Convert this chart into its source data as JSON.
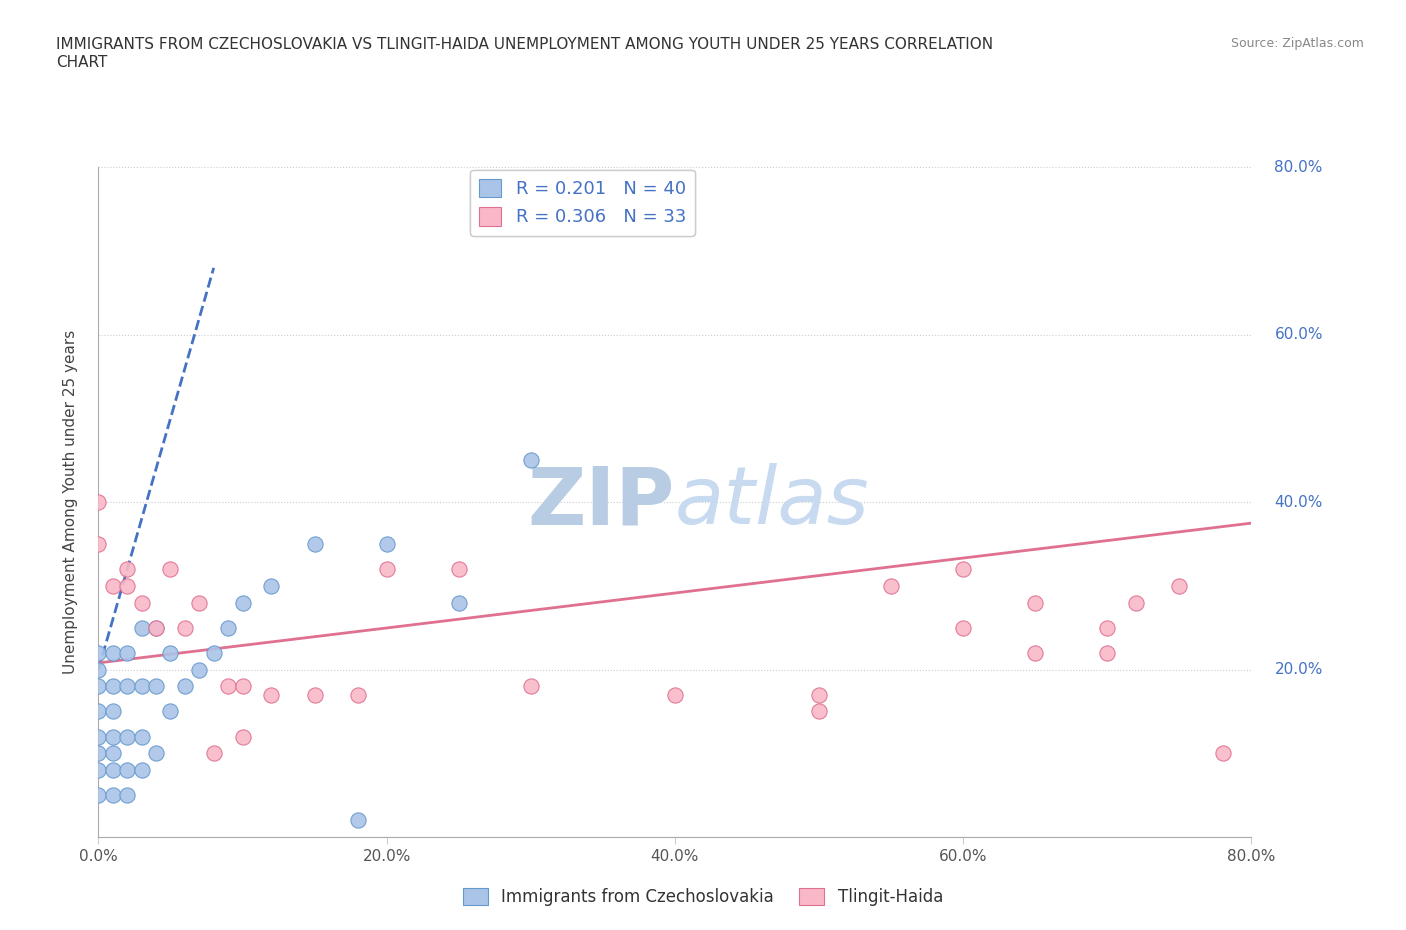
{
  "title": "IMMIGRANTS FROM CZECHOSLOVAKIA VS TLINGIT-HAIDA UNEMPLOYMENT AMONG YOUTH UNDER 25 YEARS CORRELATION\nCHART",
  "source_text": "Source: ZipAtlas.com",
  "watermark": "ZIPatlas",
  "ylabel": "Unemployment Among Youth under 25 years",
  "xlim": [
    0.0,
    0.8
  ],
  "ylim": [
    0.0,
    0.8
  ],
  "xticks": [
    0.0,
    0.2,
    0.4,
    0.6,
    0.8
  ],
  "yticks": [
    0.0,
    0.2,
    0.4,
    0.6,
    0.8
  ],
  "xticklabels": [
    "0.0%",
    "20.0%",
    "40.0%",
    "60.0%",
    "80.0%"
  ],
  "yticklabels_right": [
    "",
    "20.0%",
    "40.0%",
    "60.0%",
    "80.0%"
  ],
  "series": [
    {
      "name": "Immigrants from Czechoslovakia",
      "color": "#aac4e8",
      "edge_color": "#6699cc",
      "x": [
        0.0,
        0.0,
        0.0,
        0.0,
        0.0,
        0.0,
        0.0,
        0.0,
        0.01,
        0.01,
        0.01,
        0.01,
        0.01,
        0.01,
        0.01,
        0.02,
        0.02,
        0.02,
        0.02,
        0.02,
        0.03,
        0.03,
        0.03,
        0.03,
        0.04,
        0.04,
        0.04,
        0.05,
        0.05,
        0.06,
        0.07,
        0.08,
        0.09,
        0.1,
        0.12,
        0.15,
        0.18,
        0.2,
        0.25,
        0.3
      ],
      "y": [
        0.05,
        0.08,
        0.1,
        0.12,
        0.15,
        0.18,
        0.2,
        0.22,
        0.05,
        0.08,
        0.1,
        0.12,
        0.15,
        0.18,
        0.22,
        0.05,
        0.08,
        0.12,
        0.18,
        0.22,
        0.08,
        0.12,
        0.18,
        0.25,
        0.1,
        0.18,
        0.25,
        0.15,
        0.22,
        0.18,
        0.2,
        0.22,
        0.25,
        0.28,
        0.3,
        0.35,
        0.02,
        0.35,
        0.28,
        0.45
      ],
      "trendline_color": "#4472c4",
      "trendline_style": "--",
      "trend_x0": 0.0,
      "trend_y0": 0.2,
      "trend_x1": 0.08,
      "trend_y1": 0.68
    },
    {
      "name": "Tlingit-Haida",
      "color": "#f9b8c8",
      "edge_color": "#e07090",
      "x": [
        0.0,
        0.0,
        0.01,
        0.02,
        0.02,
        0.03,
        0.04,
        0.05,
        0.06,
        0.07,
        0.08,
        0.09,
        0.1,
        0.1,
        0.12,
        0.15,
        0.18,
        0.2,
        0.25,
        0.3,
        0.4,
        0.5,
        0.55,
        0.6,
        0.65,
        0.7,
        0.72,
        0.75,
        0.78,
        0.5,
        0.6,
        0.65,
        0.7
      ],
      "y": [
        0.35,
        0.4,
        0.3,
        0.3,
        0.32,
        0.28,
        0.25,
        0.32,
        0.25,
        0.28,
        0.1,
        0.18,
        0.12,
        0.18,
        0.17,
        0.17,
        0.17,
        0.32,
        0.32,
        0.18,
        0.17,
        0.17,
        0.3,
        0.32,
        0.22,
        0.25,
        0.28,
        0.3,
        0.1,
        0.15,
        0.25,
        0.28,
        0.22
      ],
      "trendline_color": "#e07090",
      "trendline_style": "-",
      "trend_x0": 0.0,
      "trend_y0": 0.208,
      "trend_x1": 0.8,
      "trend_y1": 0.375
    }
  ],
  "legend_items": [
    {
      "label_R": "R = ",
      "label_R_val": "0.201",
      "label_N": "  N = ",
      "label_N_val": "40",
      "patch_color": "#aac4e8",
      "patch_edge": "#6699cc"
    },
    {
      "label_R": "R = ",
      "label_R_val": "0.306",
      "label_N": "  N = ",
      "label_N_val": "33",
      "patch_color": "#f9b8c8",
      "patch_edge": "#e07090"
    }
  ],
  "bottom_legend": [
    {
      "label": "Immigrants from Czechoslovakia",
      "color": "#aac4e8",
      "edge": "#6699cc"
    },
    {
      "label": "Tlingit-Haida",
      "color": "#f9b8c8",
      "edge": "#e07090"
    }
  ],
  "grid_color": "#cccccc",
  "bg_color": "#ffffff",
  "watermark_color": "#c8d8ec",
  "watermark_fontsize": 58,
  "title_fontsize": 11,
  "tick_color_right": "#4472c4",
  "tick_color_bottom": "#555555"
}
